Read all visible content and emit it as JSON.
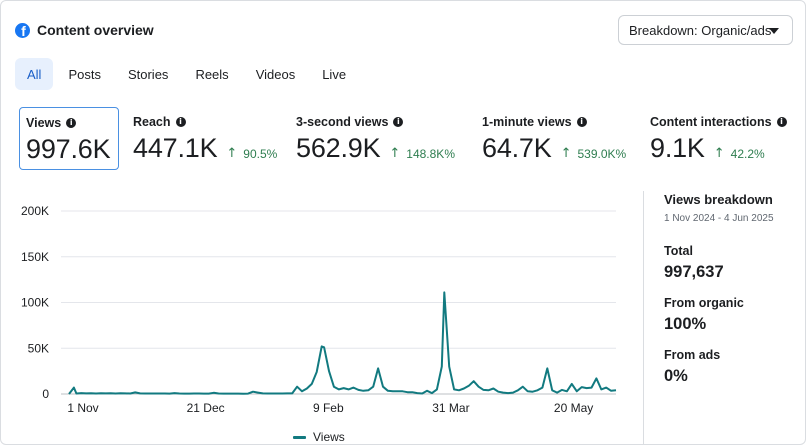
{
  "header": {
    "title": "Content overview",
    "icon": "facebook-icon",
    "breakdown_label": "Breakdown: Organic/ads"
  },
  "tabs": [
    {
      "label": "All",
      "active": true
    },
    {
      "label": "Posts",
      "active": false
    },
    {
      "label": "Stories",
      "active": false
    },
    {
      "label": "Reels",
      "active": false
    },
    {
      "label": "Videos",
      "active": false
    },
    {
      "label": "Live",
      "active": false
    }
  ],
  "metrics": [
    {
      "label": "Views",
      "value": "997.6K",
      "change": ""
    },
    {
      "label": "Reach",
      "value": "447.1K",
      "change": "90.5%"
    },
    {
      "label": "3-second views",
      "value": "562.9K",
      "change": "148.8K%"
    },
    {
      "label": "1-minute views",
      "value": "64.7K",
      "change": "539.0K%"
    },
    {
      "label": "Content interactions",
      "value": "9.1K",
      "change": "42.2%"
    }
  ],
  "side_panel": {
    "title": "Views breakdown",
    "date_range": "1 Nov 2024 - 4 Jun 2025",
    "total_label": "Total",
    "total_value": "997,637",
    "organic_label": "From organic",
    "organic_value": "100%",
    "ads_label": "From ads",
    "ads_value": "0%"
  },
  "colors": {
    "accent": "#1877f2",
    "series": "#127a80",
    "positive_change": "#2e7d4f",
    "tab_active_bg": "#e7f0fd"
  },
  "chart_data": {
    "type": "line",
    "x_tick_labels": [
      "1 Nov",
      "21 Dec",
      "9 Feb",
      "31 Mar",
      "20 May"
    ],
    "y_tick_labels": [
      "0",
      "50K",
      "100K",
      "150K",
      "200K"
    ],
    "ylim": [
      0,
      200000
    ],
    "xlim": [
      "2024-11-01",
      "2025-06-04"
    ],
    "grid": true,
    "legend_position": "bottom",
    "series": [
      {
        "name": "Views",
        "points": [
          [
            "2024-11-01",
            0
          ],
          [
            "2024-11-03",
            7000
          ],
          [
            "2024-11-04",
            500
          ],
          [
            "2024-11-06",
            1000
          ],
          [
            "2024-11-08",
            700
          ],
          [
            "2024-11-10",
            900
          ],
          [
            "2024-11-12",
            600
          ],
          [
            "2024-11-14",
            800
          ],
          [
            "2024-11-16",
            700
          ],
          [
            "2024-11-18",
            800
          ],
          [
            "2024-11-20",
            600
          ],
          [
            "2024-11-22",
            900
          ],
          [
            "2024-11-24",
            700
          ],
          [
            "2024-11-26",
            600
          ],
          [
            "2024-11-28",
            1800
          ],
          [
            "2024-11-30",
            700
          ],
          [
            "2024-12-02",
            600
          ],
          [
            "2024-12-04",
            500
          ],
          [
            "2024-12-06",
            500
          ],
          [
            "2024-12-08",
            600
          ],
          [
            "2024-12-10",
            600
          ],
          [
            "2024-12-12",
            400
          ],
          [
            "2024-12-14",
            1000
          ],
          [
            "2024-12-16",
            500
          ],
          [
            "2024-12-18",
            400
          ],
          [
            "2024-12-20",
            400
          ],
          [
            "2024-12-22",
            500
          ],
          [
            "2024-12-24",
            500
          ],
          [
            "2024-12-26",
            400
          ],
          [
            "2024-12-28",
            400
          ],
          [
            "2024-12-30",
            1300
          ],
          [
            "2025-01-01",
            500
          ],
          [
            "2025-01-03",
            400
          ],
          [
            "2025-01-05",
            400
          ],
          [
            "2025-01-07",
            400
          ],
          [
            "2025-01-09",
            400
          ],
          [
            "2025-01-11",
            300
          ],
          [
            "2025-01-13",
            400
          ],
          [
            "2025-01-15",
            2500
          ],
          [
            "2025-01-17",
            1500
          ],
          [
            "2025-01-19",
            700
          ],
          [
            "2025-01-21",
            500
          ],
          [
            "2025-01-23",
            500
          ],
          [
            "2025-01-25",
            600
          ],
          [
            "2025-01-27",
            600
          ],
          [
            "2025-01-29",
            700
          ],
          [
            "2025-01-31",
            700
          ],
          [
            "2025-02-02",
            8000
          ],
          [
            "2025-02-04",
            3000
          ],
          [
            "2025-02-06",
            6000
          ],
          [
            "2025-02-08",
            11000
          ],
          [
            "2025-02-10",
            24000
          ],
          [
            "2025-02-12",
            52000
          ],
          [
            "2025-02-13",
            51000
          ],
          [
            "2025-02-15",
            25000
          ],
          [
            "2025-02-17",
            8000
          ],
          [
            "2025-02-19",
            5000
          ],
          [
            "2025-02-21",
            6500
          ],
          [
            "2025-02-23",
            5000
          ],
          [
            "2025-02-25",
            7000
          ],
          [
            "2025-02-27",
            4500
          ],
          [
            "2025-03-01",
            3500
          ],
          [
            "2025-03-03",
            4000
          ],
          [
            "2025-03-05",
            8000
          ],
          [
            "2025-03-07",
            28000
          ],
          [
            "2025-03-09",
            8000
          ],
          [
            "2025-03-11",
            3500
          ],
          [
            "2025-03-13",
            3000
          ],
          [
            "2025-03-15",
            3000
          ],
          [
            "2025-03-17",
            3000
          ],
          [
            "2025-03-19",
            2000
          ],
          [
            "2025-03-21",
            2000
          ],
          [
            "2025-03-23",
            1000
          ],
          [
            "2025-03-25",
            500
          ],
          [
            "2025-03-27",
            3500
          ],
          [
            "2025-03-29",
            1000
          ],
          [
            "2025-03-31",
            5000
          ],
          [
            "2025-04-02",
            30000
          ],
          [
            "2025-04-03",
            111000
          ],
          [
            "2025-04-05",
            30000
          ],
          [
            "2025-04-07",
            5000
          ],
          [
            "2025-04-09",
            4000
          ],
          [
            "2025-04-11",
            6000
          ],
          [
            "2025-04-13",
            9000
          ],
          [
            "2025-04-15",
            14000
          ],
          [
            "2025-04-17",
            8000
          ],
          [
            "2025-04-19",
            4500
          ],
          [
            "2025-04-21",
            4000
          ],
          [
            "2025-04-23",
            6000
          ],
          [
            "2025-04-25",
            2500
          ],
          [
            "2025-04-27",
            1500
          ],
          [
            "2025-04-29",
            1000
          ],
          [
            "2025-05-01",
            1500
          ],
          [
            "2025-05-03",
            4000
          ],
          [
            "2025-05-05",
            8000
          ],
          [
            "2025-05-07",
            3000
          ],
          [
            "2025-05-09",
            2500
          ],
          [
            "2025-05-11",
            4000
          ],
          [
            "2025-05-13",
            7000
          ],
          [
            "2025-05-15",
            28000
          ],
          [
            "2025-05-17",
            4000
          ],
          [
            "2025-05-19",
            1500
          ],
          [
            "2025-05-21",
            4500
          ],
          [
            "2025-05-23",
            3000
          ],
          [
            "2025-05-25",
            11000
          ],
          [
            "2025-05-27",
            3000
          ],
          [
            "2025-05-29",
            7500
          ],
          [
            "2025-05-31",
            6500
          ],
          [
            "2025-06-02",
            7000
          ],
          [
            "2025-06-04",
            17000
          ],
          [
            "2025-06-06",
            5000
          ],
          [
            "2025-06-08",
            7000
          ],
          [
            "2025-06-10",
            3500
          ],
          [
            "2025-06-12",
            4000
          ]
        ]
      }
    ]
  }
}
